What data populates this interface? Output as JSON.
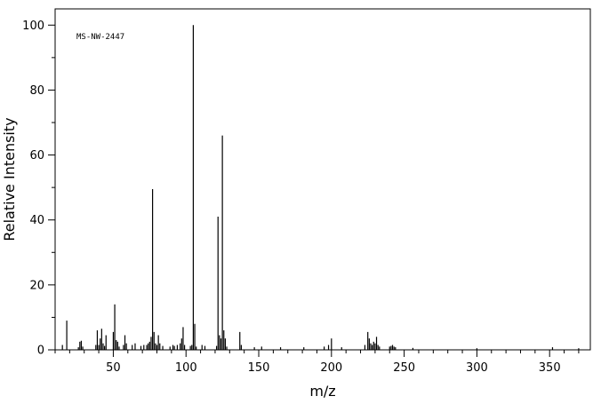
{
  "chart_data": {
    "type": "bar",
    "annotation": "MS-NW-2447",
    "xlabel": "m/z",
    "ylabel": "Relative Intensity",
    "xlim": [
      10,
      378
    ],
    "ylim": [
      0,
      105
    ],
    "x_ticks": [
      50,
      100,
      150,
      200,
      250,
      300,
      350
    ],
    "y_ticks": [
      0,
      20,
      40,
      60,
      80,
      100
    ],
    "grid": false,
    "bar_color": "#000000",
    "peaks": [
      {
        "mz": 15,
        "intensity": 1.5
      },
      {
        "mz": 18,
        "intensity": 9
      },
      {
        "mz": 26,
        "intensity": 0.8
      },
      {
        "mz": 27,
        "intensity": 2.5
      },
      {
        "mz": 28,
        "intensity": 2.8
      },
      {
        "mz": 29,
        "intensity": 1
      },
      {
        "mz": 38,
        "intensity": 1.5
      },
      {
        "mz": 39,
        "intensity": 6
      },
      {
        "mz": 40,
        "intensity": 1.5
      },
      {
        "mz": 41,
        "intensity": 3.5
      },
      {
        "mz": 42,
        "intensity": 6.5
      },
      {
        "mz": 43,
        "intensity": 2
      },
      {
        "mz": 44,
        "intensity": 1.2
      },
      {
        "mz": 45,
        "intensity": 4.5
      },
      {
        "mz": 50,
        "intensity": 5.5
      },
      {
        "mz": 51,
        "intensity": 14
      },
      {
        "mz": 52,
        "intensity": 3
      },
      {
        "mz": 53,
        "intensity": 2.5
      },
      {
        "mz": 54,
        "intensity": 1
      },
      {
        "mz": 57,
        "intensity": 1.5
      },
      {
        "mz": 58,
        "intensity": 4.5
      },
      {
        "mz": 59,
        "intensity": 2
      },
      {
        "mz": 63,
        "intensity": 1.5
      },
      {
        "mz": 65,
        "intensity": 2
      },
      {
        "mz": 69,
        "intensity": 1.2
      },
      {
        "mz": 71,
        "intensity": 1.5
      },
      {
        "mz": 73,
        "intensity": 1.5
      },
      {
        "mz": 74,
        "intensity": 2
      },
      {
        "mz": 75,
        "intensity": 2.5
      },
      {
        "mz": 76,
        "intensity": 4
      },
      {
        "mz": 77,
        "intensity": 49.5
      },
      {
        "mz": 78,
        "intensity": 5.5
      },
      {
        "mz": 79,
        "intensity": 2
      },
      {
        "mz": 80,
        "intensity": 1.5
      },
      {
        "mz": 81,
        "intensity": 4.5
      },
      {
        "mz": 82,
        "intensity": 2
      },
      {
        "mz": 84,
        "intensity": 1.2
      },
      {
        "mz": 89,
        "intensity": 1
      },
      {
        "mz": 91,
        "intensity": 1.5
      },
      {
        "mz": 92,
        "intensity": 1.2
      },
      {
        "mz": 94,
        "intensity": 1.5
      },
      {
        "mz": 96,
        "intensity": 2
      },
      {
        "mz": 97,
        "intensity": 3.5
      },
      {
        "mz": 98,
        "intensity": 7
      },
      {
        "mz": 99,
        "intensity": 1.5
      },
      {
        "mz": 103,
        "intensity": 1.2
      },
      {
        "mz": 104,
        "intensity": 1.5
      },
      {
        "mz": 105,
        "intensity": 100
      },
      {
        "mz": 106,
        "intensity": 8
      },
      {
        "mz": 107,
        "intensity": 1
      },
      {
        "mz": 111,
        "intensity": 1.5
      },
      {
        "mz": 113,
        "intensity": 1.2
      },
      {
        "mz": 121,
        "intensity": 1.2
      },
      {
        "mz": 122,
        "intensity": 41
      },
      {
        "mz": 123,
        "intensity": 4.5
      },
      {
        "mz": 124,
        "intensity": 3.5
      },
      {
        "mz": 125,
        "intensity": 66
      },
      {
        "mz": 126,
        "intensity": 6
      },
      {
        "mz": 127,
        "intensity": 3.5
      },
      {
        "mz": 128,
        "intensity": 1
      },
      {
        "mz": 137,
        "intensity": 5.5
      },
      {
        "mz": 138,
        "intensity": 1.5
      },
      {
        "mz": 147,
        "intensity": 0.8
      },
      {
        "mz": 152,
        "intensity": 1
      },
      {
        "mz": 165,
        "intensity": 0.8
      },
      {
        "mz": 181,
        "intensity": 0.8
      },
      {
        "mz": 195,
        "intensity": 1
      },
      {
        "mz": 198,
        "intensity": 1.5
      },
      {
        "mz": 200,
        "intensity": 3.5
      },
      {
        "mz": 207,
        "intensity": 0.8
      },
      {
        "mz": 223,
        "intensity": 1.5
      },
      {
        "mz": 225,
        "intensity": 5.5
      },
      {
        "mz": 226,
        "intensity": 3.5
      },
      {
        "mz": 227,
        "intensity": 2
      },
      {
        "mz": 228,
        "intensity": 1.5
      },
      {
        "mz": 229,
        "intensity": 2.5
      },
      {
        "mz": 230,
        "intensity": 2
      },
      {
        "mz": 231,
        "intensity": 4
      },
      {
        "mz": 232,
        "intensity": 1.5
      },
      {
        "mz": 233,
        "intensity": 1
      },
      {
        "mz": 240,
        "intensity": 1
      },
      {
        "mz": 241,
        "intensity": 1.2
      },
      {
        "mz": 242,
        "intensity": 1.5
      },
      {
        "mz": 243,
        "intensity": 1
      },
      {
        "mz": 244,
        "intensity": 0.8
      },
      {
        "mz": 256,
        "intensity": 0.6
      },
      {
        "mz": 300,
        "intensity": 0.5
      },
      {
        "mz": 352,
        "intensity": 0.8
      },
      {
        "mz": 370,
        "intensity": 0.5
      }
    ]
  }
}
